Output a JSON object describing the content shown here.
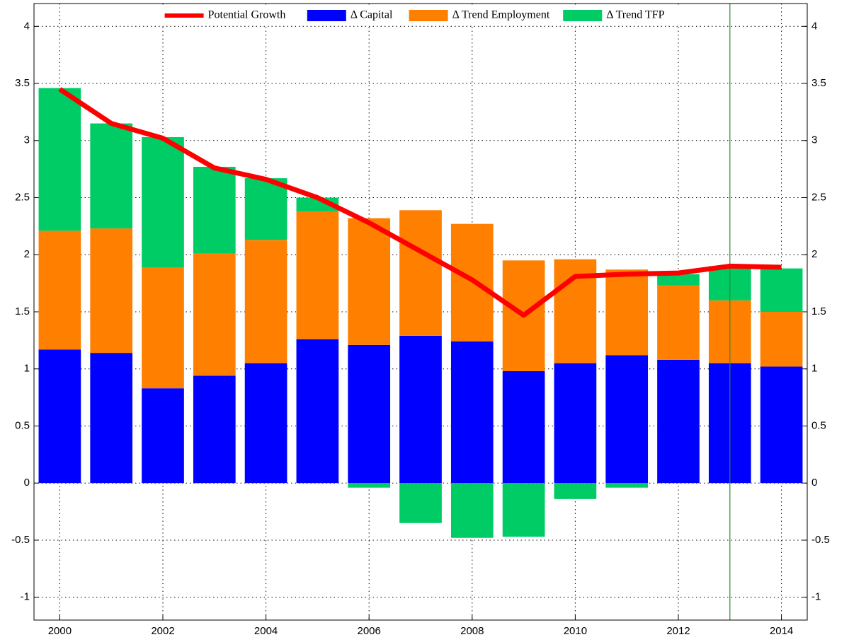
{
  "chart_data": {
    "type": "bar",
    "stacked": true,
    "x": [
      2000,
      2001,
      2002,
      2003,
      2004,
      2005,
      2006,
      2007,
      2008,
      2009,
      2010,
      2011,
      2012,
      2013,
      2014
    ],
    "series": [
      {
        "name": "Potential Growth",
        "type": "line",
        "color": "#ff0000",
        "values": [
          3.45,
          3.15,
          3.02,
          2.76,
          2.66,
          2.5,
          2.28,
          2.03,
          1.78,
          1.47,
          1.81,
          1.83,
          1.84,
          1.9,
          1.89
        ]
      },
      {
        "name": "Δ Capital",
        "type": "bar",
        "color": "#0000ff",
        "values": [
          1.17,
          1.14,
          0.83,
          0.94,
          1.05,
          1.26,
          1.21,
          1.29,
          1.24,
          0.98,
          1.05,
          1.12,
          1.08,
          1.05,
          1.02
        ]
      },
      {
        "name": "Δ Trend Employment",
        "type": "bar",
        "color": "#ff7f00",
        "values": [
          1.04,
          1.09,
          1.06,
          1.07,
          1.08,
          1.12,
          1.11,
          1.1,
          1.03,
          0.97,
          0.91,
          0.75,
          0.65,
          0.55,
          0.48
        ]
      },
      {
        "name": "Δ Trend TFP",
        "type": "bar",
        "color": "#00cc66",
        "values": [
          1.25,
          0.92,
          1.14,
          0.76,
          0.54,
          0.12,
          -0.04,
          -0.35,
          -0.48,
          -0.47,
          -0.14,
          -0.04,
          0.1,
          0.3,
          0.38
        ]
      }
    ],
    "vline": {
      "x": 2013,
      "color": "#2e8b2e"
    },
    "xlim": [
      1999.5,
      2014.5
    ],
    "xticks": [
      2000,
      2002,
      2004,
      2006,
      2008,
      2010,
      2012,
      2014
    ],
    "ylim": [
      -1.2,
      4.2
    ],
    "yticks": [
      -1,
      -0.5,
      0,
      0.5,
      1,
      1.5,
      2,
      2.5,
      3,
      3.5,
      4
    ],
    "grid": true,
    "legend": "upper center"
  }
}
